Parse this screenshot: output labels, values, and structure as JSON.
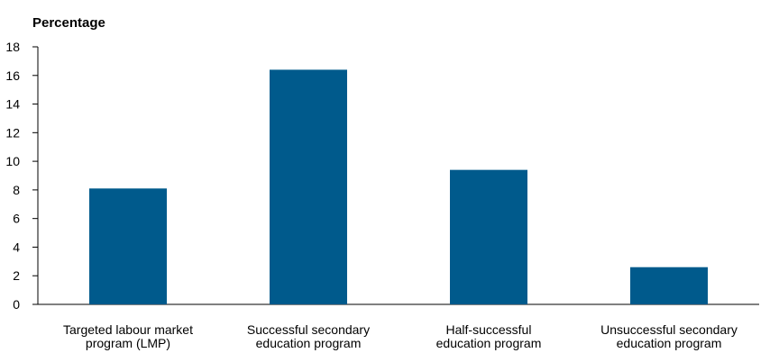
{
  "chart_data": {
    "type": "bar",
    "ylabel": "Percentage",
    "ylim": [
      0,
      18
    ],
    "yticks": [
      0,
      2,
      4,
      6,
      8,
      10,
      12,
      14,
      16,
      18
    ],
    "grid": false,
    "categories": [
      [
        "Targeted labour market",
        "program (LMP)"
      ],
      [
        "Successful secondary",
        "education program"
      ],
      [
        "Half-successful",
        "education program"
      ],
      [
        "Unsuccessful secondary",
        "education program"
      ]
    ],
    "values": [
      8.1,
      16.4,
      9.4,
      2.6
    ],
    "colors": {
      "bar": "#005a8c",
      "axis": "#000000"
    }
  }
}
